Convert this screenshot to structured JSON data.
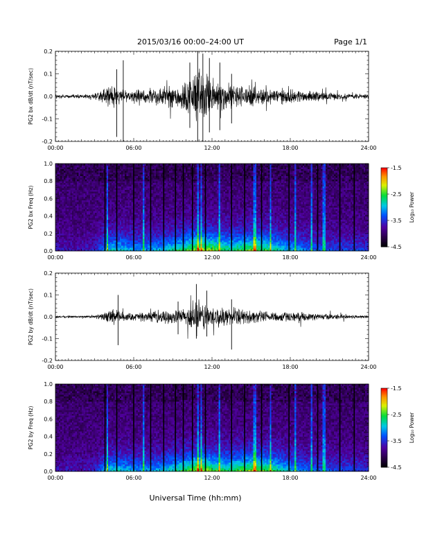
{
  "header": {
    "title": "2015/03/16  00:00–24:00 UT",
    "page": "Page 1/1"
  },
  "xlabel": "Universal Time (hh:mm)",
  "chart_data": [
    {
      "type": "line",
      "ylabel": "PG2 bx dB/dt (nT/sec)",
      "xlim": [
        0,
        24
      ],
      "ylim": [
        -0.2,
        0.2
      ],
      "xticks": [
        "00:00",
        "06:00",
        "12:00",
        "18:00",
        "24:00"
      ],
      "yticks": [
        "0.2",
        "0.1",
        "0.0",
        "-0.1",
        "-0.2"
      ],
      "envelope": {
        "hours": [
          0,
          2,
          3,
          3.5,
          4,
          4.5,
          5,
          5.5,
          6,
          7,
          8,
          9,
          10,
          10.5,
          11,
          11.5,
          12,
          12.5,
          13,
          14,
          15,
          16,
          17,
          18,
          19,
          20,
          21,
          22,
          23,
          24
        ],
        "amplitude": [
          0.01,
          0.01,
          0.015,
          0.03,
          0.05,
          0.07,
          0.045,
          0.03,
          0.03,
          0.04,
          0.05,
          0.06,
          0.08,
          0.12,
          0.15,
          0.12,
          0.1,
          0.085,
          0.07,
          0.06,
          0.05,
          0.045,
          0.04,
          0.035,
          0.03,
          0.025,
          0.02,
          0.015,
          0.015,
          0.012
        ]
      },
      "spikes": [
        {
          "hour": 4.7,
          "min": -0.18,
          "max": 0.12
        },
        {
          "hour": 5.2,
          "min": -0.2,
          "max": 0.16
        },
        {
          "hour": 10.3,
          "min": -0.14,
          "max": 0.15
        },
        {
          "hour": 10.9,
          "min": -0.2,
          "max": 0.2
        },
        {
          "hour": 11.3,
          "min": -0.2,
          "max": 0.19
        },
        {
          "hour": 11.8,
          "min": -0.16,
          "max": 0.17
        },
        {
          "hour": 12.6,
          "min": -0.15,
          "max": 0.15
        },
        {
          "hour": 13.5,
          "min": -0.12,
          "max": 0.1
        }
      ]
    },
    {
      "type": "heatmap",
      "ylabel": "PG2 bx Freq (Hz)",
      "xlim": [
        0,
        24
      ],
      "ylim": [
        0,
        1.0
      ],
      "xticks": [
        "00:00",
        "06:00",
        "12:00",
        "18:00",
        "24:00"
      ],
      "yticks": [
        "1.0",
        "0.8",
        "0.6",
        "0.4",
        "0.2",
        "0.0"
      ],
      "colorbar": {
        "label": "Log₁₀ Power",
        "range": [
          -4.5,
          -1.5
        ],
        "ticks": [
          "-1.5",
          "-2.5",
          "-3.5",
          "-4.5"
        ]
      },
      "activity": {
        "hours": [
          0,
          2,
          3,
          3.5,
          4,
          5,
          6,
          7,
          8,
          9,
          10,
          11,
          12,
          13,
          14,
          15,
          16,
          17,
          18,
          19,
          20,
          21,
          22,
          23,
          24
        ],
        "level": [
          0.15,
          0.15,
          0.2,
          0.35,
          0.55,
          0.55,
          0.45,
          0.45,
          0.5,
          0.6,
          0.75,
          0.9,
          0.85,
          0.7,
          0.7,
          0.8,
          0.75,
          0.6,
          0.5,
          0.4,
          0.35,
          0.3,
          0.3,
          0.3,
          0.25
        ]
      },
      "gap_hours": [
        3.8,
        4.7,
        6.0,
        7.3,
        8.3,
        9.2,
        9.8,
        10.5,
        11.5,
        13.5,
        14.5,
        15.8,
        17.9,
        20.1,
        21.8,
        22.9
      ],
      "bright_hours": [
        4.0,
        6.8,
        10.9,
        11.2,
        12.6,
        15.3,
        16.5,
        18.4,
        19.6,
        20.6
      ]
    },
    {
      "type": "line",
      "ylabel": "PG2 by dB/dt (nT/sec)",
      "xlim": [
        0,
        24
      ],
      "ylim": [
        -0.2,
        0.2
      ],
      "xticks": [
        "00:00",
        "06:00",
        "12:00",
        "18:00",
        "24:00"
      ],
      "yticks": [
        "0.2",
        "0.1",
        "0.0",
        "-0.1",
        "-0.2"
      ],
      "envelope": {
        "hours": [
          0,
          2,
          3,
          3.5,
          4,
          4.5,
          5,
          5.5,
          6,
          7,
          8,
          9,
          10,
          10.5,
          11,
          11.5,
          12,
          12.5,
          13,
          14,
          15,
          16,
          17,
          18,
          19,
          20,
          21,
          22,
          23,
          24
        ],
        "amplitude": [
          0.006,
          0.006,
          0.008,
          0.015,
          0.03,
          0.05,
          0.03,
          0.02,
          0.02,
          0.025,
          0.03,
          0.035,
          0.045,
          0.07,
          0.09,
          0.07,
          0.055,
          0.05,
          0.045,
          0.04,
          0.035,
          0.03,
          0.028,
          0.025,
          0.02,
          0.018,
          0.015,
          0.012,
          0.01,
          0.008
        ]
      },
      "spikes": [
        {
          "hour": 4.8,
          "min": -0.13,
          "max": 0.1
        },
        {
          "hour": 10.8,
          "min": -0.1,
          "max": 0.15
        },
        {
          "hour": 11.6,
          "min": -0.09,
          "max": 0.12
        },
        {
          "hour": 13.5,
          "min": -0.15,
          "max": 0.08
        },
        {
          "hour": 9.4,
          "min": -0.08,
          "max": 0.07
        }
      ]
    },
    {
      "type": "heatmap",
      "ylabel": "PG2 by Freq (Hz)",
      "xlim": [
        0,
        24
      ],
      "ylim": [
        0,
        1.0
      ],
      "xticks": [
        "00:00",
        "06:00",
        "12:00",
        "18:00",
        "24:00"
      ],
      "yticks": [
        "1.0",
        "0.8",
        "0.6",
        "0.4",
        "0.2",
        "0.0"
      ],
      "colorbar": {
        "label": "Log₁₀ Power",
        "range": [
          -4.5,
          -1.5
        ],
        "ticks": [
          "-1.5",
          "-2.5",
          "-3.5",
          "-4.5"
        ]
      },
      "activity": {
        "hours": [
          0,
          2,
          3,
          3.5,
          4,
          5,
          6,
          7,
          8,
          9,
          10,
          11,
          12,
          13,
          14,
          15,
          16,
          17,
          18,
          19,
          20,
          21,
          22,
          23,
          24
        ],
        "level": [
          0.15,
          0.15,
          0.2,
          0.35,
          0.55,
          0.55,
          0.45,
          0.45,
          0.5,
          0.6,
          0.75,
          0.9,
          0.8,
          0.7,
          0.75,
          0.85,
          0.8,
          0.65,
          0.5,
          0.4,
          0.35,
          0.3,
          0.3,
          0.3,
          0.25
        ]
      },
      "gap_hours": [
        3.8,
        4.7,
        6.0,
        7.3,
        8.3,
        9.2,
        9.8,
        10.5,
        11.5,
        13.5,
        14.5,
        15.8,
        17.9,
        20.1,
        21.8,
        22.9
      ],
      "bright_hours": [
        4.0,
        6.8,
        10.9,
        11.2,
        12.6,
        15.3,
        16.5,
        18.4,
        19.6,
        20.6
      ]
    }
  ]
}
